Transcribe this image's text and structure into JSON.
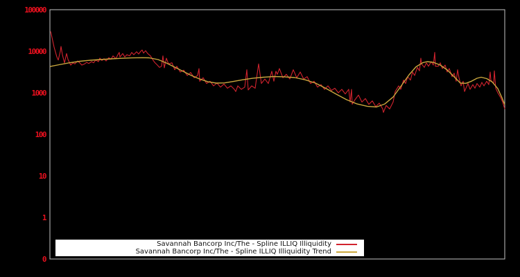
{
  "colors": {
    "background": "#000000",
    "frame": "#c6c6c6",
    "tick_labels": "#e8101e",
    "series_red": "#d2232e",
    "trend_yellow": "#cba83e",
    "legend_bg": "#ffffff",
    "legend_text": "#111111"
  },
  "chart_data": {
    "type": "line",
    "title": "",
    "xlabel": "",
    "ylabel": "",
    "grid": false,
    "y_scale": "log",
    "ylim": [
      0.1,
      100000
    ],
    "x_unit": "plot_px",
    "legend_position": "bottom-center",
    "y_ticks": [
      {
        "label": "100000",
        "value": 100000
      },
      {
        "label": "10000",
        "value": 10000
      },
      {
        "label": "1000",
        "value": 1000
      },
      {
        "label": "100",
        "value": 100
      },
      {
        "label": "10",
        "value": 10
      },
      {
        "label": "1",
        "value": 1
      },
      {
        "label": "0",
        "value": 0.1
      }
    ],
    "series": [
      {
        "id": "illiquidity-line",
        "name": "Savannah Bancorp Inc/The - Spline ILLIQ Illiquidity",
        "color": "#d2232e",
        "points": [
          [
            73,
            30000
          ],
          [
            75,
            21500
          ],
          [
            78,
            12600
          ],
          [
            82,
            7280
          ],
          [
            84,
            6140
          ],
          [
            87,
            10000
          ],
          [
            88,
            13100
          ],
          [
            90,
            8260
          ],
          [
            93,
            5270
          ],
          [
            96,
            8810
          ],
          [
            98,
            6380
          ],
          [
            102,
            4640
          ],
          [
            105,
            5270
          ],
          [
            108,
            4950
          ],
          [
            112,
            5850
          ],
          [
            115,
            5270
          ],
          [
            118,
            4640
          ],
          [
            122,
            4950
          ],
          [
            125,
            5410
          ],
          [
            128,
            5070
          ],
          [
            132,
            5620
          ],
          [
            135,
            5270
          ],
          [
            138,
            6140
          ],
          [
            142,
            5620
          ],
          [
            144,
            6810
          ],
          [
            147,
            5990
          ],
          [
            150,
            6640
          ],
          [
            153,
            5850
          ],
          [
            157,
            7000
          ],
          [
            160,
            6380
          ],
          [
            163,
            7730
          ],
          [
            167,
            6640
          ],
          [
            170,
            8260
          ],
          [
            172,
            9370
          ],
          [
            173,
            7280
          ],
          [
            177,
            8810
          ],
          [
            180,
            7280
          ],
          [
            183,
            8260
          ],
          [
            187,
            7730
          ],
          [
            190,
            9370
          ],
          [
            193,
            8260
          ],
          [
            197,
            9730
          ],
          [
            200,
            8570
          ],
          [
            203,
            10000
          ],
          [
            205,
            10700
          ],
          [
            207,
            9020
          ],
          [
            210,
            10300
          ],
          [
            213,
            8810
          ],
          [
            217,
            7730
          ],
          [
            220,
            6380
          ],
          [
            223,
            5410
          ],
          [
            227,
            4640
          ],
          [
            230,
            4090
          ],
          [
            233,
            4350
          ],
          [
            235,
            7730
          ],
          [
            237,
            3980
          ],
          [
            240,
            6810
          ],
          [
            243,
            4950
          ],
          [
            248,
            5270
          ],
          [
            252,
            3590
          ],
          [
            255,
            4350
          ],
          [
            260,
            3160
          ],
          [
            265,
            3510
          ],
          [
            270,
            2610
          ],
          [
            275,
            3080
          ],
          [
            280,
            2300
          ],
          [
            285,
            2610
          ],
          [
            287,
            3830
          ],
          [
            288,
            1900
          ],
          [
            293,
            2300
          ],
          [
            298,
            1670
          ],
          [
            303,
            1900
          ],
          [
            308,
            1470
          ],
          [
            313,
            1710
          ],
          [
            318,
            1370
          ],
          [
            323,
            1630
          ],
          [
            328,
            1290
          ],
          [
            333,
            1470
          ],
          [
            338,
            1210
          ],
          [
            340,
            1070
          ],
          [
            343,
            1470
          ],
          [
            348,
            1210
          ],
          [
            353,
            1370
          ],
          [
            356,
            3590
          ],
          [
            358,
            1170
          ],
          [
            363,
            1470
          ],
          [
            368,
            1290
          ],
          [
            373,
            4950
          ],
          [
            377,
            1670
          ],
          [
            382,
            2150
          ],
          [
            387,
            1670
          ],
          [
            392,
            3300
          ],
          [
            395,
            1900
          ],
          [
            398,
            3300
          ],
          [
            400,
            2790
          ],
          [
            403,
            3830
          ],
          [
            408,
            2300
          ],
          [
            413,
            2790
          ],
          [
            418,
            2150
          ],
          [
            423,
            3590
          ],
          [
            428,
            2300
          ],
          [
            433,
            3160
          ],
          [
            438,
            2150
          ],
          [
            443,
            2450
          ],
          [
            448,
            1670
          ],
          [
            453,
            1900
          ],
          [
            458,
            1370
          ],
          [
            463,
            1570
          ],
          [
            468,
            1210
          ],
          [
            473,
            1470
          ],
          [
            478,
            1140
          ],
          [
            483,
            1290
          ],
          [
            488,
            1000
          ],
          [
            493,
            1210
          ],
          [
            498,
            937
          ],
          [
            503,
            1210
          ],
          [
            505,
            600
          ],
          [
            507,
            1210
          ],
          [
            508,
            530
          ],
          [
            512,
            681
          ],
          [
            517,
            881
          ],
          [
            522,
            599
          ],
          [
            527,
            728
          ],
          [
            532,
            527
          ],
          [
            537,
            638
          ],
          [
            542,
            464
          ],
          [
            547,
            562
          ],
          [
            552,
            409
          ],
          [
            553,
            337
          ],
          [
            557,
            495
          ],
          [
            562,
            409
          ],
          [
            567,
            599
          ],
          [
            570,
            1070
          ],
          [
            575,
            1470
          ],
          [
            578,
            1210
          ],
          [
            582,
            2020
          ],
          [
            585,
            1670
          ],
          [
            588,
            2450
          ],
          [
            592,
            2020
          ],
          [
            595,
            3160
          ],
          [
            598,
            2610
          ],
          [
            602,
            4090
          ],
          [
            605,
            3370
          ],
          [
            607,
            6810
          ],
          [
            608,
            4950
          ],
          [
            612,
            4090
          ],
          [
            615,
            5270
          ],
          [
            618,
            4350
          ],
          [
            622,
            5620
          ],
          [
            625,
            4640
          ],
          [
            627,
            9370
          ],
          [
            628,
            4350
          ],
          [
            632,
            4350
          ],
          [
            635,
            5270
          ],
          [
            638,
            3830
          ],
          [
            642,
            4640
          ],
          [
            645,
            3160
          ],
          [
            648,
            3830
          ],
          [
            652,
            2450
          ],
          [
            655,
            2960
          ],
          [
            658,
            1900
          ],
          [
            660,
            3590
          ],
          [
            662,
            2300
          ],
          [
            665,
            1470
          ],
          [
            668,
            1900
          ],
          [
            670,
            1070
          ],
          [
            672,
            1290
          ],
          [
            675,
            1670
          ],
          [
            678,
            1210
          ],
          [
            682,
            1570
          ],
          [
            685,
            1290
          ],
          [
            688,
            1670
          ],
          [
            692,
            1370
          ],
          [
            695,
            1780
          ],
          [
            698,
            1470
          ],
          [
            702,
            1900
          ],
          [
            705,
            1570
          ],
          [
            707,
            3160
          ],
          [
            708,
            2020
          ],
          [
            712,
            1670
          ],
          [
            713,
            3370
          ],
          [
            715,
            1290
          ],
          [
            718,
            1000
          ],
          [
            722,
            773
          ],
          [
            725,
            599
          ],
          [
            727,
            464
          ],
          [
            728,
            409
          ]
        ]
      },
      {
        "id": "illiquidity-trend-line",
        "name": "Savannah Bancorp Inc/The - Spline ILLIQ Illiquidity Trend",
        "color": "#cba83e",
        "points": [
          [
            72,
            4290
          ],
          [
            85,
            4730
          ],
          [
            100,
            5270
          ],
          [
            115,
            5730
          ],
          [
            130,
            6070
          ],
          [
            145,
            6310
          ],
          [
            160,
            6560
          ],
          [
            175,
            6760
          ],
          [
            190,
            6920
          ],
          [
            205,
            7000
          ],
          [
            215,
            6950
          ],
          [
            228,
            6310
          ],
          [
            240,
            5210
          ],
          [
            252,
            4130
          ],
          [
            264,
            3280
          ],
          [
            276,
            2610
          ],
          [
            288,
            2150
          ],
          [
            300,
            1840
          ],
          [
            312,
            1710
          ],
          [
            324,
            1730
          ],
          [
            336,
            1870
          ],
          [
            350,
            2060
          ],
          [
            365,
            2250
          ],
          [
            380,
            2370
          ],
          [
            395,
            2460
          ],
          [
            410,
            2430
          ],
          [
            425,
            2330
          ],
          [
            440,
            2060
          ],
          [
            455,
            1710
          ],
          [
            470,
            1280
          ],
          [
            485,
            926
          ],
          [
            500,
            681
          ],
          [
            515,
            540
          ],
          [
            530,
            471
          ],
          [
            543,
            456
          ],
          [
            555,
            540
          ],
          [
            567,
            790
          ],
          [
            578,
            1420
          ],
          [
            590,
            2710
          ],
          [
            600,
            4220
          ],
          [
            610,
            5320
          ],
          [
            616,
            5620
          ],
          [
            625,
            5410
          ],
          [
            635,
            4640
          ],
          [
            645,
            3550
          ],
          [
            655,
            2430
          ],
          [
            664,
            1710
          ],
          [
            672,
            1690
          ],
          [
            680,
            1900
          ],
          [
            688,
            2240
          ],
          [
            694,
            2370
          ],
          [
            702,
            2200
          ],
          [
            710,
            1820
          ],
          [
            718,
            1260
          ],
          [
            724,
            760
          ],
          [
            728,
            519
          ]
        ]
      }
    ]
  }
}
